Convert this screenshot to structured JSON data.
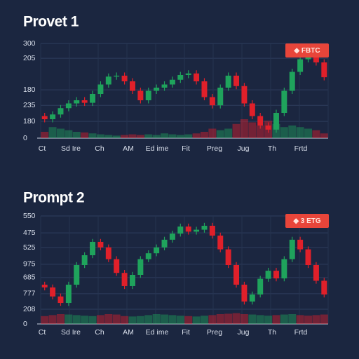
{
  "chart_data": [
    {
      "type": "candlestick",
      "title": "Provet 1",
      "legend": "◆ FBTC",
      "legend_color": "#e8453a",
      "categories": [
        "Ct",
        "Sd Ire",
        "Ch",
        "AM",
        "Ed ime",
        "Fit",
        "Preg",
        "Jug",
        "Th",
        "Frtd"
      ],
      "ylim": [
        0,
        300
      ],
      "yticks": [
        300,
        {
          "value": 253,
          "label": "205"
        },
        {
          "value": 153,
          "label": "180"
        },
        {
          "value": 104,
          "label": "235"
        },
        {
          "value": 53,
          "label": "180"
        },
        0
      ],
      "grid": true,
      "up_color": "#1fa35c",
      "down_color": "#e0202a",
      "open": [
        70,
        60,
        75,
        95,
        110,
        120,
        112,
        140,
        170,
        195,
        198,
        180,
        150,
        120,
        150,
        160,
        170,
        185,
        200,
        205,
        180,
        130,
        104,
        160,
        198,
        165,
        110,
        70,
        40,
        27,
        80,
        150,
        210,
        250,
        268,
        240
      ],
      "high": [
        80,
        85,
        105,
        120,
        130,
        130,
        150,
        180,
        205,
        208,
        208,
        190,
        160,
        160,
        170,
        180,
        195,
        210,
        215,
        215,
        190,
        140,
        170,
        208,
        208,
        175,
        120,
        80,
        50,
        90,
        160,
        220,
        260,
        278,
        278,
        250
      ],
      "low": [
        50,
        50,
        65,
        85,
        100,
        102,
        102,
        130,
        160,
        185,
        170,
        140,
        110,
        110,
        140,
        150,
        160,
        175,
        190,
        170,
        120,
        94,
        94,
        150,
        155,
        100,
        60,
        30,
        17,
        17,
        70,
        140,
        200,
        240,
        230,
        183
      ],
      "close": [
        60,
        75,
        95,
        110,
        120,
        112,
        140,
        170,
        195,
        198,
        180,
        150,
        120,
        150,
        160,
        170,
        185,
        200,
        205,
        180,
        130,
        104,
        160,
        198,
        165,
        110,
        70,
        40,
        27,
        80,
        150,
        210,
        250,
        268,
        240,
        193
      ],
      "volume": [
        20,
        35,
        30,
        25,
        20,
        18,
        15,
        12,
        10,
        8,
        10,
        12,
        10,
        12,
        10,
        15,
        12,
        10,
        12,
        15,
        20,
        30,
        25,
        30,
        45,
        60,
        50,
        40,
        55,
        45,
        35,
        40,
        35,
        30,
        25,
        15
      ]
    },
    {
      "type": "candlestick",
      "title": "Prompt 2",
      "legend": "◆ 3 ETG",
      "legend_color": "#e8453a",
      "categories": [
        "Ct",
        "Sd Ire",
        "Ch",
        "AM",
        "Ed ime",
        "Fit",
        "Preg",
        "Jug",
        "Th",
        "Frtd"
      ],
      "ylim": [
        0,
        550
      ],
      "yticks": [
        550,
        {
          "value": 464,
          "label": "475"
        },
        {
          "value": 389,
          "label": "525"
        },
        {
          "value": 304,
          "label": "975"
        },
        {
          "value": 236,
          "label": "685"
        },
        {
          "value": 154,
          "label": "777"
        },
        {
          "value": 75,
          "label": "208"
        },
        0
      ],
      "grid": true,
      "up_color": "#1fa35c",
      "down_color": "#e0202a",
      "open": [
        200,
        186,
        140,
        107,
        200,
        300,
        350,
        418,
        390,
        330,
        260,
        193,
        250,
        330,
        360,
        390,
        429,
        460,
        496,
        470,
        480,
        500,
        450,
        380,
        300,
        200,
        114,
        150,
        230,
        271,
        232,
        330,
        429,
        380,
        300,
        220
      ],
      "high": [
        215,
        201,
        155,
        215,
        315,
        365,
        433,
        433,
        405,
        345,
        275,
        265,
        345,
        375,
        405,
        444,
        475,
        511,
        511,
        495,
        515,
        515,
        465,
        395,
        315,
        215,
        165,
        245,
        286,
        286,
        345,
        444,
        444,
        395,
        315,
        235
      ],
      "low": [
        171,
        125,
        92,
        92,
        185,
        285,
        335,
        375,
        315,
        245,
        178,
        178,
        235,
        315,
        345,
        375,
        414,
        445,
        455,
        455,
        465,
        435,
        365,
        285,
        185,
        99,
        99,
        135,
        215,
        217,
        217,
        315,
        365,
        285,
        205,
        135
      ],
      "close": [
        186,
        140,
        107,
        200,
        300,
        350,
        418,
        390,
        330,
        260,
        193,
        250,
        330,
        360,
        390,
        429,
        460,
        496,
        470,
        480,
        500,
        450,
        380,
        300,
        200,
        114,
        150,
        230,
        271,
        232,
        330,
        429,
        380,
        300,
        220,
        150
      ],
      "volume": [
        40,
        45,
        50,
        48,
        45,
        42,
        40,
        45,
        50,
        48,
        40,
        38,
        40,
        45,
        50,
        48,
        45,
        42,
        40,
        38,
        42,
        45,
        50,
        52,
        55,
        50,
        48,
        45,
        42,
        45,
        48,
        50,
        45,
        42,
        45,
        48
      ]
    }
  ]
}
